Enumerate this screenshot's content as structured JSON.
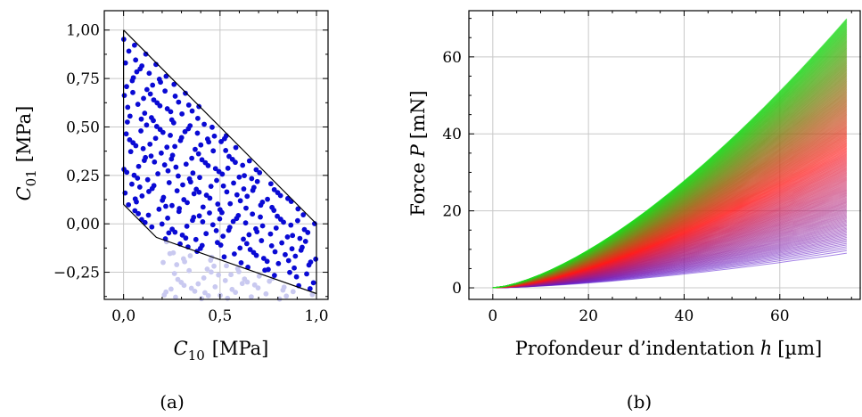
{
  "chart_data": [
    {
      "id": "a",
      "type": "scatter",
      "caption": "(a)",
      "xlabel": {
        "sym": "C",
        "sub": "10",
        "unit": "[MPa]"
      },
      "ylabel": {
        "sym": "C",
        "sub": "01",
        "unit": "[MPa]"
      },
      "xlim": [
        -0.1,
        1.06
      ],
      "ylim": [
        -0.39,
        1.1
      ],
      "xticks": [
        0.0,
        0.5,
        1.0
      ],
      "xtick_labels": [
        "0,0",
        "0,5",
        "1,0"
      ],
      "yticks": [
        1.0,
        0.75,
        0.5,
        0.25,
        0.0,
        -0.25
      ],
      "ytick_labels": [
        "1,00",
        "0,75",
        "0,50",
        "0,25",
        "0,00",
        "−0,25"
      ],
      "grid": true,
      "boundary": [
        [
          0.0,
          1.0
        ],
        [
          1.0,
          0.0
        ],
        [
          1.0,
          -0.36
        ],
        [
          0.17,
          -0.07
        ],
        [
          0.0,
          0.1
        ],
        [
          0.0,
          1.0
        ]
      ],
      "inside_color": "#0a0ad4",
      "outside_color": "#c9c9f0",
      "points_shown": "quasi-random sample over 0≤C10≤1, −0.39≤C01≤1; points inside the boundary shown dark blue, outside points below the lower edge shown pale"
    },
    {
      "id": "b",
      "type": "line",
      "caption": "(b)",
      "xlabel": {
        "text": "Profondeur d’indentation",
        "sym": "h",
        "unit": "[µm]"
      },
      "ylabel": {
        "text": "Force",
        "sym": "P",
        "unit": "[mN]"
      },
      "xlim": [
        -5,
        77
      ],
      "ylim": [
        -3,
        72
      ],
      "xticks": [
        0,
        20,
        40,
        60
      ],
      "xtick_labels": [
        "0",
        "20",
        "40",
        "60"
      ],
      "yticks": [
        0,
        20,
        40,
        60
      ],
      "ytick_labels": [
        "0",
        "20",
        "40",
        "60"
      ],
      "grid": true,
      "curve_model": "P = F_max * (h / 74)^1.5",
      "h_max": 74,
      "F_max_range": [
        8.5,
        70
      ],
      "color_scale": {
        "low": "#5a1fd6",
        "mid": "#ff1a1a",
        "high": "#1fdc1f"
      },
      "series_count": 300
    }
  ]
}
